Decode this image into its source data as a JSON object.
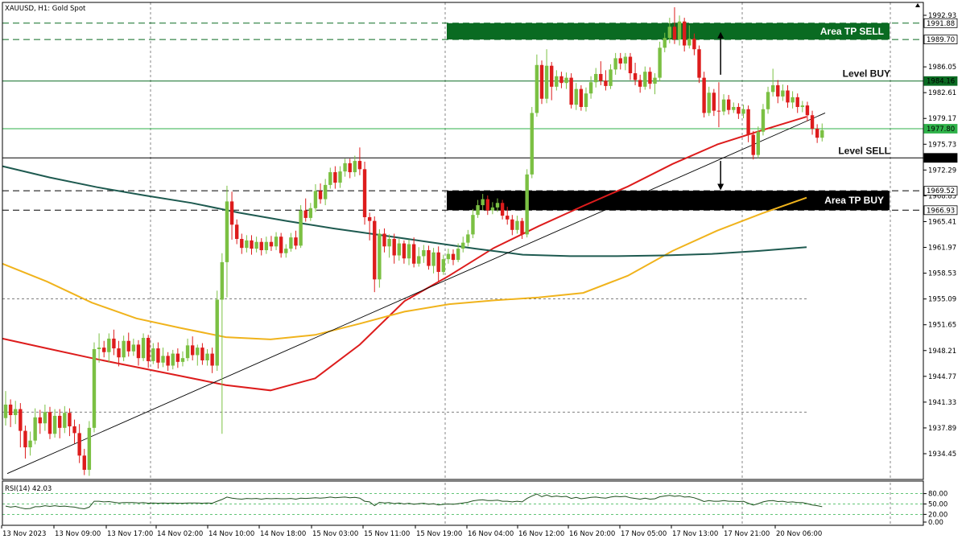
{
  "header": {
    "symbol_text": "XAUUSD, H1:  Gold Spot"
  },
  "chart_data": {
    "type": "candlestick",
    "symbol": "XAUUSD",
    "timeframe": "H1",
    "instrument": "Gold Spot",
    "ylim": [
      1931.0,
      1994.0
    ],
    "price_ticks": [
      "1992.93",
      "1986.05",
      "1982.61",
      "1979.17",
      "1975.73",
      "1972.29",
      "1968.85",
      "1965.41",
      "1961.97",
      "1958.53",
      "1955.09",
      "1951.65",
      "1948.21",
      "1944.77",
      "1941.33",
      "1937.89",
      "1934.45"
    ],
    "time_labels": [
      "13 Nov 2023",
      "13 Nov 09:00",
      "13 Nov 17:00",
      "14 Nov 02:00",
      "14 Nov 10:00",
      "14 Nov 18:00",
      "15 Nov 03:00",
      "15 Nov 11:00",
      "15 Nov 19:00",
      "16 Nov 04:00",
      "16 Nov 12:00",
      "16 Nov 20:00",
      "17 Nov 05:00",
      "17 Nov 13:00",
      "17 Nov 21:00",
      "20 Nov 06:00"
    ],
    "candles": [
      [
        1939.2,
        1941.0,
        1942.8,
        1938.2
      ],
      [
        1941.0,
        1939.6,
        1941.7,
        1938.0
      ],
      [
        1939.6,
        1940.4,
        1941.5,
        1938.4
      ],
      [
        1940.4,
        1937.5,
        1941.2,
        1935.3
      ],
      [
        1937.5,
        1935.3,
        1938.2,
        1933.8
      ],
      [
        1935.3,
        1936.2,
        1937.4,
        1934.2
      ],
      [
        1936.2,
        1939.3,
        1940.5,
        1935.7
      ],
      [
        1939.3,
        1938.5,
        1940.3,
        1937.1
      ],
      [
        1938.5,
        1940.0,
        1941.0,
        1937.5
      ],
      [
        1940.0,
        1937.1,
        1940.7,
        1936.4
      ],
      [
        1937.1,
        1939.5,
        1940.4,
        1936.6
      ],
      [
        1939.5,
        1937.9,
        1940.4,
        1936.5
      ],
      [
        1937.9,
        1939.9,
        1940.8,
        1937.2
      ],
      [
        1939.9,
        1938.1,
        1940.5,
        1936.8
      ],
      [
        1938.1,
        1937.2,
        1939.0,
        1935.8
      ],
      [
        1937.2,
        1934.2,
        1938.4,
        1933.2
      ],
      [
        1934.2,
        1932.3,
        1935.1,
        1931.6
      ],
      [
        1932.3,
        1937.9,
        1938.8,
        1931.5
      ],
      [
        1937.9,
        1948.4,
        1949.3,
        1937.3
      ],
      [
        1948.4,
        1948.6,
        1950.5,
        1946.6
      ],
      [
        1948.6,
        1948.0,
        1949.5,
        1947.3
      ],
      [
        1948.0,
        1949.8,
        1950.5,
        1946.6
      ],
      [
        1949.8,
        1948.5,
        1951.0,
        1947.6
      ],
      [
        1948.5,
        1947.3,
        1949.5,
        1946.1
      ],
      [
        1947.3,
        1949.5,
        1950.2,
        1946.8
      ],
      [
        1949.5,
        1948.1,
        1950.6,
        1947.4
      ],
      [
        1948.1,
        1949.0,
        1949.8,
        1947.5
      ],
      [
        1949.0,
        1947.2,
        1949.6,
        1946.2
      ],
      [
        1947.2,
        1949.9,
        1950.5,
        1946.8
      ],
      [
        1949.9,
        1946.8,
        1950.3,
        1945.9
      ],
      [
        1946.8,
        1948.5,
        1949.2,
        1946.4
      ],
      [
        1948.5,
        1946.6,
        1949.3,
        1945.8
      ],
      [
        1946.6,
        1947.5,
        1948.6,
        1946.0
      ],
      [
        1947.5,
        1946.2,
        1948.0,
        1945.5
      ],
      [
        1946.2,
        1947.8,
        1948.3,
        1945.7
      ],
      [
        1947.8,
        1946.7,
        1948.5,
        1945.9
      ],
      [
        1946.7,
        1947.2,
        1948.1,
        1946.1
      ],
      [
        1947.2,
        1948.9,
        1949.8,
        1946.8
      ],
      [
        1948.9,
        1947.6,
        1950.1,
        1946.9
      ],
      [
        1947.6,
        1948.6,
        1949.0,
        1946.2
      ],
      [
        1948.6,
        1946.9,
        1949.2,
        1946.3
      ],
      [
        1946.9,
        1947.8,
        1948.4,
        1946.2
      ],
      [
        1947.8,
        1946.2,
        1948.6,
        1945.2
      ],
      [
        1946.2,
        1955.0,
        1956.2,
        1945.5
      ],
      [
        1955.0,
        1960.0,
        1961.2,
        1937.1
      ],
      [
        1960.0,
        1968.1,
        1970.2,
        1955.3
      ],
      [
        1968.1,
        1965.0,
        1969.4,
        1963.0
      ],
      [
        1965.0,
        1963.1,
        1965.7,
        1962.4
      ],
      [
        1963.1,
        1961.9,
        1963.8,
        1961.1
      ],
      [
        1961.9,
        1962.9,
        1963.6,
        1961.3
      ],
      [
        1962.9,
        1961.8,
        1963.6,
        1961.0
      ],
      [
        1961.8,
        1962.7,
        1963.4,
        1961.3
      ],
      [
        1962.7,
        1961.6,
        1963.2,
        1960.9
      ],
      [
        1961.6,
        1962.7,
        1963.4,
        1961.1
      ],
      [
        1962.7,
        1962.1,
        1963.5,
        1961.5
      ],
      [
        1962.1,
        1963.4,
        1964.0,
        1961.6
      ],
      [
        1963.4,
        1961.2,
        1963.9,
        1960.6
      ],
      [
        1961.2,
        1961.8,
        1962.4,
        1960.6
      ],
      [
        1961.8,
        1963.3,
        1963.9,
        1961.4
      ],
      [
        1963.3,
        1962.2,
        1964.2,
        1961.7
      ],
      [
        1962.2,
        1966.9,
        1967.6,
        1961.9
      ],
      [
        1966.9,
        1965.9,
        1968.5,
        1965.4
      ],
      [
        1965.9,
        1967.2,
        1967.9,
        1965.5
      ],
      [
        1967.2,
        1969.5,
        1970.4,
        1966.7
      ],
      [
        1969.5,
        1968.4,
        1970.5,
        1967.8
      ],
      [
        1968.4,
        1970.3,
        1971.1,
        1967.6
      ],
      [
        1970.3,
        1972.0,
        1972.6,
        1969.8
      ],
      [
        1972.0,
        1970.6,
        1972.8,
        1969.8
      ],
      [
        1970.6,
        1972.1,
        1972.8,
        1969.9
      ],
      [
        1972.1,
        1973.2,
        1973.8,
        1971.4
      ],
      [
        1973.2,
        1972.0,
        1973.8,
        1971.2
      ],
      [
        1972.0,
        1973.5,
        1974.2,
        1971.4
      ],
      [
        1973.5,
        1972.4,
        1975.3,
        1971.6
      ],
      [
        1972.4,
        1966.0,
        1973.4,
        1965.0
      ],
      [
        1966.0,
        1965.5,
        1966.6,
        1962.9
      ],
      [
        1965.5,
        1957.7,
        1966.1,
        1956.0
      ],
      [
        1957.7,
        1963.8,
        1964.4,
        1956.6
      ],
      [
        1963.8,
        1962.1,
        1964.5,
        1961.3
      ],
      [
        1962.1,
        1963.1,
        1963.7,
        1960.6
      ],
      [
        1963.1,
        1960.9,
        1963.8,
        1959.8
      ],
      [
        1960.9,
        1962.5,
        1963.1,
        1960.2
      ],
      [
        1962.5,
        1960.5,
        1962.9,
        1959.8
      ],
      [
        1960.5,
        1962.4,
        1963.0,
        1959.6
      ],
      [
        1962.4,
        1959.8,
        1963.3,
        1959.3
      ],
      [
        1959.8,
        1960.8,
        1962.0,
        1959.4
      ],
      [
        1960.8,
        1961.6,
        1962.3,
        1959.9
      ],
      [
        1961.6,
        1959.5,
        1962.2,
        1959.0
      ],
      [
        1959.5,
        1961.3,
        1961.9,
        1958.5
      ],
      [
        1961.3,
        1958.7,
        1962.1,
        1957.3
      ],
      [
        1958.7,
        1960.4,
        1961.0,
        1958.3
      ],
      [
        1960.4,
        1961.1,
        1961.8,
        1959.8
      ],
      [
        1961.1,
        1960.3,
        1961.7,
        1959.6
      ],
      [
        1960.3,
        1961.8,
        1962.5,
        1960.0
      ],
      [
        1961.8,
        1962.6,
        1963.4,
        1961.3
      ],
      [
        1962.6,
        1963.7,
        1964.3,
        1962.1
      ],
      [
        1963.7,
        1966.3,
        1967.1,
        1963.2
      ],
      [
        1966.3,
        1967.6,
        1968.3,
        1965.9
      ],
      [
        1967.6,
        1968.4,
        1969.1,
        1966.9
      ],
      [
        1968.4,
        1966.9,
        1968.9,
        1966.3
      ],
      [
        1966.9,
        1967.3,
        1968.0,
        1966.4
      ],
      [
        1967.3,
        1967.9,
        1968.5,
        1966.7
      ],
      [
        1967.9,
        1966.2,
        1968.3,
        1965.7
      ],
      [
        1966.2,
        1965.7,
        1967.4,
        1965.0
      ],
      [
        1965.7,
        1964.3,
        1966.3,
        1963.6
      ],
      [
        1964.3,
        1965.5,
        1966.2,
        1963.8
      ],
      [
        1965.5,
        1963.7,
        1965.9,
        1963.1
      ],
      [
        1963.7,
        1971.7,
        1972.4,
        1963.3
      ],
      [
        1971.7,
        1979.9,
        1980.7,
        1971.2
      ],
      [
        1979.9,
        1986.3,
        1987.7,
        1979.4
      ],
      [
        1986.3,
        1981.8,
        1986.9,
        1981.1
      ],
      [
        1981.8,
        1986.2,
        1988.4,
        1981.2
      ],
      [
        1986.2,
        1983.4,
        1986.7,
        1981.6
      ],
      [
        1983.4,
        1984.8,
        1985.6,
        1982.9
      ],
      [
        1984.8,
        1983.9,
        1985.4,
        1983.2
      ],
      [
        1983.9,
        1984.6,
        1985.3,
        1983.1
      ],
      [
        1984.6,
        1981.0,
        1985.2,
        1980.5
      ],
      [
        1981.0,
        1983.1,
        1983.9,
        1980.3
      ],
      [
        1983.1,
        1980.7,
        1983.6,
        1980.2
      ],
      [
        1980.7,
        1982.5,
        1983.3,
        1980.1
      ],
      [
        1982.5,
        1984.0,
        1984.8,
        1981.8
      ],
      [
        1984.0,
        1985.1,
        1985.9,
        1983.3
      ],
      [
        1985.1,
        1984.2,
        1986.8,
        1983.6
      ],
      [
        1984.2,
        1983.5,
        1985.6,
        1982.9
      ],
      [
        1983.5,
        1985.7,
        1986.4,
        1983.1
      ],
      [
        1985.7,
        1987.2,
        1987.9,
        1985.0
      ],
      [
        1987.2,
        1986.5,
        1987.9,
        1985.7
      ],
      [
        1986.5,
        1987.4,
        1987.9,
        1985.6
      ],
      [
        1987.4,
        1985.2,
        1987.9,
        1984.3
      ],
      [
        1985.2,
        1984.3,
        1986.6,
        1983.6
      ],
      [
        1984.3,
        1983.4,
        1985.0,
        1982.6
      ],
      [
        1983.4,
        1985.4,
        1986.1,
        1983.0
      ],
      [
        1985.4,
        1983.8,
        1986.0,
        1983.1
      ],
      [
        1983.8,
        1984.6,
        1985.2,
        1982.4
      ],
      [
        1984.6,
        1988.6,
        1989.4,
        1984.1
      ],
      [
        1988.6,
        1989.9,
        1990.6,
        1988.0
      ],
      [
        1989.9,
        1991.4,
        1992.6,
        1989.2
      ],
      [
        1991.4,
        1989.7,
        1994.0,
        1989.1
      ],
      [
        1989.7,
        1992.1,
        1992.9,
        1988.9
      ],
      [
        1992.1,
        1988.9,
        1992.6,
        1988.1
      ],
      [
        1988.9,
        1989.8,
        1991.6,
        1988.5
      ],
      [
        1989.8,
        1988.4,
        1990.5,
        1987.6
      ],
      [
        1988.4,
        1984.6,
        1988.9,
        1983.9
      ],
      [
        1984.6,
        1979.9,
        1985.4,
        1979.3
      ],
      [
        1979.9,
        1982.6,
        1983.4,
        1979.5
      ],
      [
        1982.6,
        1980.2,
        1983.1,
        1979.5
      ],
      [
        1980.2,
        1980.1,
        1984.0,
        1978.0
      ],
      [
        1980.1,
        1981.7,
        1982.4,
        1979.6
      ],
      [
        1981.7,
        1980.3,
        1982.3,
        1979.7
      ],
      [
        1980.3,
        1980.7,
        1981.3,
        1979.9
      ],
      [
        1980.7,
        1979.8,
        1981.2,
        1979.1
      ],
      [
        1979.8,
        1980.4,
        1981.0,
        1979.2
      ],
      [
        1980.4,
        1977.0,
        1980.9,
        1976.0
      ],
      [
        1977.0,
        1974.3,
        1977.5,
        1973.7
      ],
      [
        1974.3,
        1977.4,
        1978.1,
        1973.9
      ],
      [
        1977.4,
        1980.4,
        1981.1,
        1976.9
      ],
      [
        1980.4,
        1982.7,
        1983.4,
        1979.8
      ],
      [
        1982.7,
        1983.6,
        1985.8,
        1982.1
      ],
      [
        1983.6,
        1982.1,
        1984.3,
        1981.2
      ],
      [
        1982.1,
        1982.9,
        1983.7,
        1981.5
      ],
      [
        1982.9,
        1981.3,
        1983.6,
        1980.6
      ],
      [
        1981.3,
        1982.0,
        1982.8,
        1980.5
      ],
      [
        1982.0,
        1980.7,
        1982.5,
        1979.9
      ],
      [
        1980.7,
        1980.9,
        1981.5,
        1980.0
      ],
      [
        1980.9,
        1979.6,
        1981.4,
        1978.8
      ],
      [
        1979.6,
        1977.8,
        1980.2,
        1977.0
      ],
      [
        1977.8,
        1976.6,
        1978.4,
        1975.9
      ],
      [
        1976.6,
        1977.6,
        1978.5,
        1976.1
      ]
    ],
    "ma_series": [
      {
        "color": "#dd1c1c",
        "values": [
          1949.8,
          1948.5,
          1947.2,
          1946.0,
          1944.8,
          1943.6,
          1942.9,
          1944.5,
          1949.0,
          1954.8,
          1958.2,
          1961.9,
          1964.8,
          1967.5,
          1970.1,
          1973.1,
          1975.7,
          1977.6,
          1979.4
        ]
      },
      {
        "color": "#f0b31c",
        "values": [
          1959.8,
          1957.4,
          1954.6,
          1952.5,
          1951.2,
          1950.0,
          1949.7,
          1950.3,
          1951.8,
          1953.4,
          1954.4,
          1954.9,
          1955.3,
          1955.9,
          1958.2,
          1961.5,
          1964.2,
          1966.5,
          1968.6
        ]
      },
      {
        "color": "#1e5a50",
        "values": [
          1972.8,
          1971.3,
          1970.0,
          1968.9,
          1967.9,
          1966.6,
          1965.5,
          1964.5,
          1963.6,
          1962.7,
          1961.8,
          1961.0,
          1960.8,
          1960.8,
          1960.9,
          1961.1,
          1961.5,
          1962.0
        ]
      }
    ],
    "trendline": {
      "from": [
        0,
        1931.8
      ],
      "to": [
        156,
        1978.4
      ]
    },
    "levels": [
      {
        "value": 1991.88,
        "label": "1991.88",
        "style": "dashed",
        "color": "#0a6b22",
        "tag_bg": "#ffffff",
        "tag_fg": "#000000"
      },
      {
        "value": 1989.7,
        "label": "1989.70",
        "style": "dashed",
        "color": "#0a6b22",
        "tag_bg": "#ffffff",
        "tag_fg": "#000000"
      },
      {
        "value": 1984.16,
        "label": "1984.16",
        "style": "solid",
        "color": "#0a6b22",
        "tag_bg": "#0a6b22",
        "tag_fg": "#ffffff"
      },
      {
        "value": 1977.8,
        "label": "1977.80",
        "style": "solid",
        "color": "#2fb24a",
        "tag_bg": "#2fb24a",
        "tag_fg": "#ffffff"
      },
      {
        "value": 1973.91,
        "label": "1973.91",
        "style": "solid",
        "color": "#000000",
        "tag_bg": "#000000",
        "tag_fg": "#ffffff"
      },
      {
        "value": 1969.52,
        "label": "1969.52",
        "style": "dashed",
        "color": "#000000",
        "tag_bg": "#ffffff",
        "tag_fg": "#000000"
      },
      {
        "value": 1966.93,
        "label": "1966.93",
        "style": "dashed",
        "color": "#000000",
        "tag_bg": "#ffffff",
        "tag_fg": "#000000"
      }
    ],
    "zones": [
      {
        "label": "Area TP SELL",
        "from": 1989.7,
        "to": 1991.88,
        "color": "#0a6b22"
      },
      {
        "label": "Area TP BUY",
        "from": 1966.93,
        "to": 1969.52,
        "color": "#000000"
      }
    ],
    "level_labels": [
      {
        "text": "Level BUY",
        "value": 1984.16
      },
      {
        "text": "Level SELL",
        "value": 1973.91
      }
    ],
    "arrows": [
      {
        "direction": "up",
        "candle_index": 147,
        "from": 1985.0,
        "to": 1990.5
      },
      {
        "direction": "down",
        "candle_index": 147,
        "from": 1973.5,
        "to": 1969.8
      }
    ],
    "rsi": {
      "label": "RSI(14) 42.03",
      "value": 42.03,
      "ticks": [
        "80.00",
        "50.00",
        "20.00",
        "0.00"
      ],
      "ylim": [
        0,
        100
      ],
      "values": [
        44,
        41,
        43,
        39,
        36,
        37,
        42,
        42,
        45,
        43,
        45,
        43,
        44,
        42,
        41,
        38,
        36,
        41,
        58,
        58,
        56,
        57,
        55,
        53,
        54,
        54,
        54,
        53,
        54,
        52,
        53,
        52,
        53,
        52,
        53,
        52,
        52,
        53,
        53,
        53,
        52,
        53,
        52,
        58,
        63,
        70,
        67,
        65,
        64,
        66,
        65,
        66,
        64,
        66,
        65,
        66,
        65,
        65,
        66,
        64,
        67,
        66,
        67,
        68,
        67,
        68,
        70,
        68,
        69,
        70,
        68,
        69,
        67,
        58,
        56,
        45,
        55,
        53,
        54,
        51,
        53,
        50,
        52,
        49,
        51,
        52,
        49,
        51,
        47,
        49,
        50,
        49,
        51,
        53,
        55,
        59,
        61,
        62,
        60,
        60,
        61,
        58,
        58,
        56,
        58,
        56,
        66,
        73,
        79,
        71,
        76,
        71,
        73,
        71,
        72,
        66,
        69,
        65,
        67,
        69,
        70,
        68,
        67,
        70,
        72,
        71,
        72,
        68,
        66,
        64,
        67,
        64,
        65,
        71,
        73,
        75,
        72,
        74,
        70,
        71,
        68,
        63,
        57,
        60,
        58,
        58,
        60,
        58,
        58,
        57,
        58,
        52,
        47,
        51,
        56,
        59,
        60,
        57,
        58,
        55,
        56,
        54,
        54,
        51,
        47,
        45,
        42
      ]
    }
  }
}
